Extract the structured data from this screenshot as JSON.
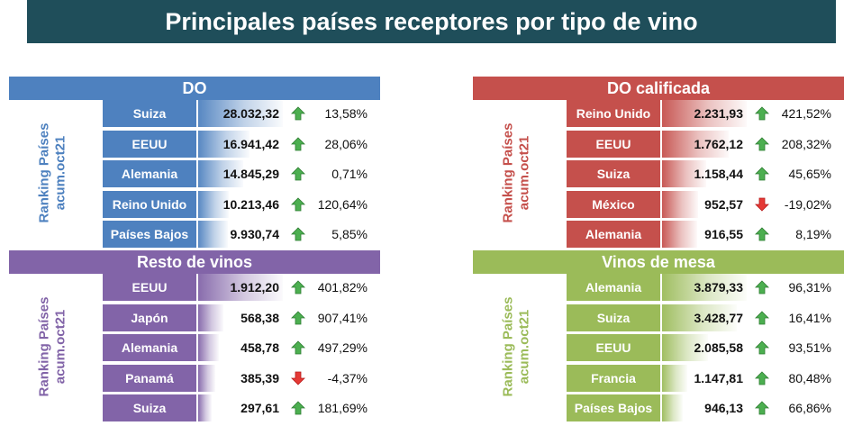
{
  "title": "Principales países receptores por tipo de vino",
  "side_label": {
    "line1": "Ranking Países",
    "line2": "acum.oct21"
  },
  "chart_data": [
    {
      "type": "bar",
      "title": "DO",
      "color": "#4e81bf",
      "categories": [
        "Suiza",
        "EEUU",
        "Alemania",
        "Reino Unido",
        "Países Bajos"
      ],
      "values": [
        28032.32,
        16941.42,
        14845.29,
        10213.46,
        9930.74
      ],
      "value_labels": [
        "28.032,32",
        "16.941,42",
        "14.845,29",
        "10.213,46",
        "9.930,74"
      ],
      "changes": [
        "13,58%",
        "28,06%",
        "0,71%",
        "120,64%",
        "5,85%"
      ],
      "directions": [
        "up",
        "up",
        "up",
        "up",
        "up"
      ]
    },
    {
      "type": "bar",
      "title": "DO calificada",
      "color": "#c5504c",
      "categories": [
        "Reino Unido",
        "EEUU",
        "Suiza",
        "México",
        "Alemania"
      ],
      "values": [
        2231.93,
        1762.12,
        1158.44,
        952.57,
        916.55
      ],
      "value_labels": [
        "2.231,93",
        "1.762,12",
        "1.158,44",
        "952,57",
        "916,55"
      ],
      "changes": [
        "421,52%",
        "208,32%",
        "45,65%",
        "-19,02%",
        "8,19%"
      ],
      "directions": [
        "up",
        "up",
        "up",
        "down",
        "up"
      ]
    },
    {
      "type": "bar",
      "title": "Resto de vinos",
      "color": "#8264a8",
      "categories": [
        "EEUU",
        "Japón",
        "Alemania",
        "Panamá",
        "Suiza"
      ],
      "values": [
        1912.2,
        568.38,
        458.78,
        385.39,
        297.61
      ],
      "value_labels": [
        "1.912,20",
        "568,38",
        "458,78",
        "385,39",
        "297,61"
      ],
      "changes": [
        "401,82%",
        "907,41%",
        "497,29%",
        "-4,37%",
        "181,69%"
      ],
      "directions": [
        "up",
        "up",
        "up",
        "down",
        "up"
      ]
    },
    {
      "type": "bar",
      "title": "Vinos de mesa",
      "color": "#9bbb59",
      "categories": [
        "Alemania",
        "Suiza",
        "EEUU",
        "Francia",
        "Países Bajos"
      ],
      "values": [
        3879.33,
        3428.77,
        2085.58,
        1147.81,
        946.13
      ],
      "value_labels": [
        "3.879,33",
        "3.428,77",
        "2.085,58",
        "1.147,81",
        "946,13"
      ],
      "changes": [
        "96,31%",
        "16,41%",
        "93,51%",
        "80,48%",
        "66,86%"
      ],
      "directions": [
        "up",
        "up",
        "up",
        "up",
        "up"
      ]
    }
  ]
}
